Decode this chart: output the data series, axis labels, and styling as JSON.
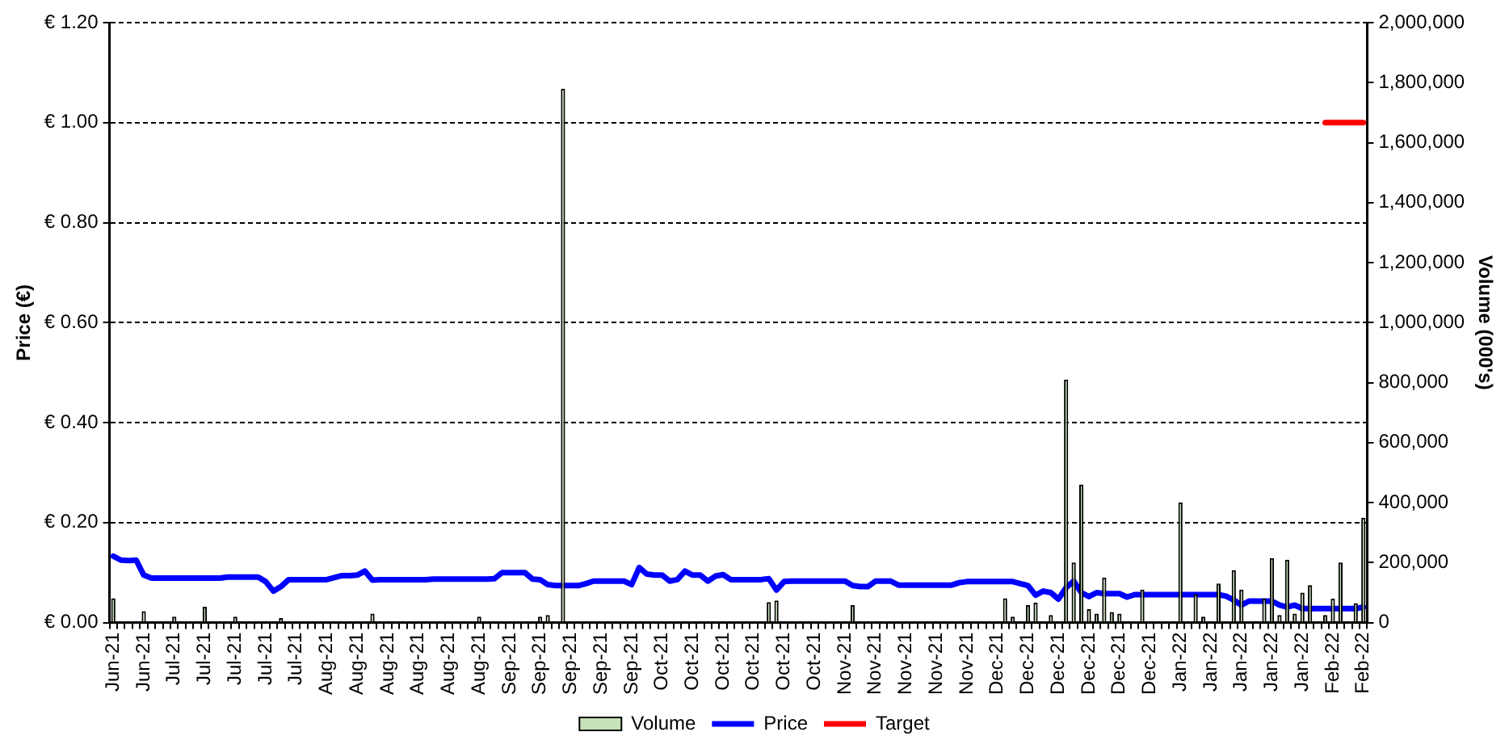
{
  "chart_data": {
    "type": "bar",
    "xlabel": null,
    "ylabel": "Price (€)",
    "y2label": "Volume (000's)",
    "categories": [
      "Jun-21",
      null,
      null,
      null,
      "Jun-21",
      null,
      null,
      null,
      "Jul-21",
      null,
      null,
      null,
      "Jul-21",
      null,
      null,
      null,
      "Jul-21",
      null,
      null,
      null,
      "Jul-21",
      null,
      null,
      null,
      "Jul-21",
      null,
      null,
      null,
      "Aug-21",
      null,
      null,
      null,
      "Aug-21",
      null,
      null,
      null,
      "Aug-21",
      null,
      null,
      null,
      "Aug-21",
      null,
      null,
      null,
      "Aug-21",
      null,
      null,
      null,
      "Aug-21",
      null,
      null,
      null,
      "Sep-21",
      null,
      null,
      null,
      "Sep-21",
      null,
      null,
      null,
      "Sep-21",
      null,
      null,
      null,
      "Sep-21",
      null,
      null,
      null,
      "Sep-21",
      null,
      null,
      null,
      "Oct-21",
      null,
      null,
      null,
      "Oct-21",
      null,
      null,
      null,
      "Oct-21",
      null,
      null,
      null,
      "Oct-21",
      null,
      null,
      null,
      "Oct-21",
      null,
      null,
      null,
      "Oct-21",
      null,
      null,
      null,
      "Nov-21",
      null,
      null,
      null,
      "Nov-21",
      null,
      null,
      null,
      "Nov-21",
      null,
      null,
      null,
      "Nov-21",
      null,
      null,
      null,
      "Nov-21",
      null,
      null,
      null,
      "Dec-21",
      null,
      null,
      null,
      "Dec-21",
      null,
      null,
      null,
      "Dec-21",
      null,
      null,
      null,
      "Dec-21",
      null,
      null,
      null,
      "Dec-21",
      null,
      null,
      null,
      "Dec-21",
      null,
      null,
      null,
      "Jan-22",
      null,
      null,
      null,
      "Jan-22",
      null,
      null,
      null,
      "Jan-22",
      null,
      null,
      null,
      "Jan-22",
      null,
      null,
      null,
      "Jan-22",
      null,
      null,
      null,
      "Feb-22",
      null,
      null,
      null,
      "Feb-22"
    ],
    "series": [
      {
        "name": "Volume",
        "axis": "y2",
        "color": "#c6e2b8",
        "values": [
          81000,
          0,
          0,
          0,
          38000,
          0,
          0,
          0,
          20000,
          0,
          0,
          0,
          53000,
          0,
          0,
          0,
          20000,
          0,
          0,
          0,
          0,
          0,
          15000,
          0,
          0,
          0,
          0,
          0,
          0,
          0,
          0,
          0,
          0,
          0,
          30000,
          0,
          0,
          0,
          0,
          0,
          0,
          0,
          0,
          0,
          0,
          0,
          0,
          0,
          20000,
          0,
          0,
          0,
          0,
          0,
          0,
          0,
          20000,
          25000,
          0,
          1780000,
          0,
          0,
          0,
          0,
          0,
          0,
          0,
          0,
          0,
          0,
          0,
          0,
          0,
          0,
          0,
          0,
          0,
          0,
          0,
          0,
          0,
          0,
          0,
          0,
          0,
          0,
          68000,
          74000,
          0,
          0,
          0,
          0,
          0,
          0,
          0,
          0,
          0,
          58000,
          0,
          0,
          0,
          0,
          0,
          0,
          0,
          0,
          0,
          0,
          0,
          0,
          0,
          0,
          0,
          0,
          0,
          0,
          0,
          81000,
          20000,
          0,
          58000,
          66000,
          0,
          25000,
          0,
          810000,
          200000,
          460000,
          45000,
          30000,
          150000,
          35000,
          30000,
          0,
          0,
          110000,
          0,
          0,
          0,
          0,
          400000,
          0,
          95000,
          20000,
          0,
          130000,
          0,
          175000,
          110000,
          0,
          0,
          80000,
          215000,
          25000,
          210000,
          30000,
          100000,
          125000,
          0,
          25000,
          80000,
          200000,
          0,
          65000,
          350000
        ]
      },
      {
        "name": "Price",
        "type": "line",
        "color": "#0000ff",
        "values": [
          0.133,
          0.125,
          0.124,
          0.125,
          0.095,
          0.089,
          0.089,
          0.089,
          0.089,
          0.089,
          0.089,
          0.089,
          0.089,
          0.089,
          0.089,
          0.091,
          0.091,
          0.091,
          0.091,
          0.091,
          0.082,
          0.063,
          0.072,
          0.086,
          0.086,
          0.086,
          0.086,
          0.086,
          0.086,
          0.09,
          0.094,
          0.094,
          0.095,
          0.103,
          0.085,
          0.086,
          0.086,
          0.086,
          0.086,
          0.086,
          0.086,
          0.086,
          0.087,
          0.087,
          0.087,
          0.087,
          0.087,
          0.087,
          0.087,
          0.087,
          0.088,
          0.1,
          0.1,
          0.1,
          0.1,
          0.087,
          0.086,
          0.076,
          0.074,
          0.074,
          0.074,
          0.074,
          0.078,
          0.083,
          0.083,
          0.083,
          0.083,
          0.083,
          0.076,
          0.11,
          0.097,
          0.095,
          0.095,
          0.083,
          0.086,
          0.103,
          0.095,
          0.095,
          0.083,
          0.093,
          0.096,
          0.086,
          0.086,
          0.086,
          0.086,
          0.086,
          0.088,
          0.065,
          0.082,
          0.083,
          0.083,
          0.083,
          0.083,
          0.083,
          0.083,
          0.083,
          0.083,
          0.074,
          0.072,
          0.072,
          0.083,
          0.083,
          0.083,
          0.075,
          0.075,
          0.075,
          0.075,
          0.075,
          0.075,
          0.075,
          0.075,
          0.08,
          0.082,
          0.082,
          0.082,
          0.082,
          0.082,
          0.082,
          0.082,
          0.078,
          0.074,
          0.055,
          0.063,
          0.06,
          0.047,
          0.07,
          0.083,
          0.06,
          0.052,
          0.06,
          0.058,
          0.058,
          0.058,
          0.051,
          0.056,
          0.056,
          0.056,
          0.056,
          0.056,
          0.056,
          0.056,
          0.056,
          0.056,
          0.056,
          0.056,
          0.056,
          0.053,
          0.045,
          0.035,
          0.043,
          0.043,
          0.043,
          0.043,
          0.035,
          0.031,
          0.035,
          0.028,
          0.028,
          0.028,
          0.028,
          0.028,
          0.028,
          0.028,
          0.028,
          0.031
        ]
      },
      {
        "name": "Target",
        "type": "line",
        "color": "#ff0000",
        "values": [
          null,
          null,
          null,
          null,
          null,
          null,
          null,
          null,
          null,
          null,
          null,
          null,
          null,
          null,
          null,
          null,
          null,
          null,
          null,
          null,
          null,
          null,
          null,
          null,
          null,
          null,
          null,
          null,
          null,
          null,
          null,
          null,
          null,
          null,
          null,
          null,
          null,
          null,
          null,
          null,
          null,
          null,
          null,
          null,
          null,
          null,
          null,
          null,
          null,
          null,
          null,
          null,
          null,
          null,
          null,
          null,
          null,
          null,
          null,
          null,
          null,
          null,
          null,
          null,
          null,
          null,
          null,
          null,
          null,
          null,
          null,
          null,
          null,
          null,
          null,
          null,
          null,
          null,
          null,
          null,
          null,
          null,
          null,
          null,
          null,
          null,
          null,
          null,
          null,
          null,
          null,
          null,
          null,
          null,
          null,
          null,
          null,
          null,
          null,
          null,
          null,
          null,
          null,
          null,
          null,
          null,
          null,
          null,
          null,
          null,
          null,
          null,
          null,
          null,
          null,
          null,
          null,
          null,
          null,
          null,
          null,
          null,
          null,
          null,
          null,
          null,
          null,
          null,
          null,
          null,
          null,
          null,
          null,
          null,
          null,
          null,
          null,
          null,
          null,
          null,
          null,
          null,
          null,
          null,
          null,
          null,
          null,
          null,
          null,
          null,
          null,
          null,
          null,
          null,
          null,
          null,
          null,
          null,
          null,
          1.0,
          1.0,
          1.0,
          1.0,
          1.0,
          1.0
        ]
      }
    ],
    "ylim": [
      0,
      1.2
    ],
    "yticks": [
      {
        "value": 0,
        "label": "€ 0.00"
      },
      {
        "value": 0.2,
        "label": "€ 0.20"
      },
      {
        "value": 0.4,
        "label": "€ 0.40"
      },
      {
        "value": 0.6,
        "label": "€ 0.60"
      },
      {
        "value": 0.8,
        "label": "€ 0.80"
      },
      {
        "value": 1.0,
        "label": "€ 1.00"
      },
      {
        "value": 1.2,
        "label": "€ 1.20"
      }
    ],
    "y2lim": [
      0,
      2000000
    ],
    "y2ticks": [
      0,
      {
        "value": 200000,
        "label": "200,000"
      },
      {
        "value": 400000,
        "label": "400,000"
      },
      {
        "value": 600000,
        "label": "600,000"
      },
      {
        "value": 800000,
        "label": "800,000"
      },
      {
        "value": 1000000,
        "label": "1,000,000"
      },
      {
        "value": 1200000,
        "label": "1,200,000"
      },
      {
        "value": 1400000,
        "label": "1,400,000"
      },
      {
        "value": 1600000,
        "label": "1,600,000"
      },
      {
        "value": 1800000,
        "label": "1,800,000"
      },
      {
        "value": 2000000,
        "label": "2,000,000"
      }
    ],
    "grid": "y",
    "legend": "bottom",
    "marker": "none",
    "line_style": "solid"
  }
}
